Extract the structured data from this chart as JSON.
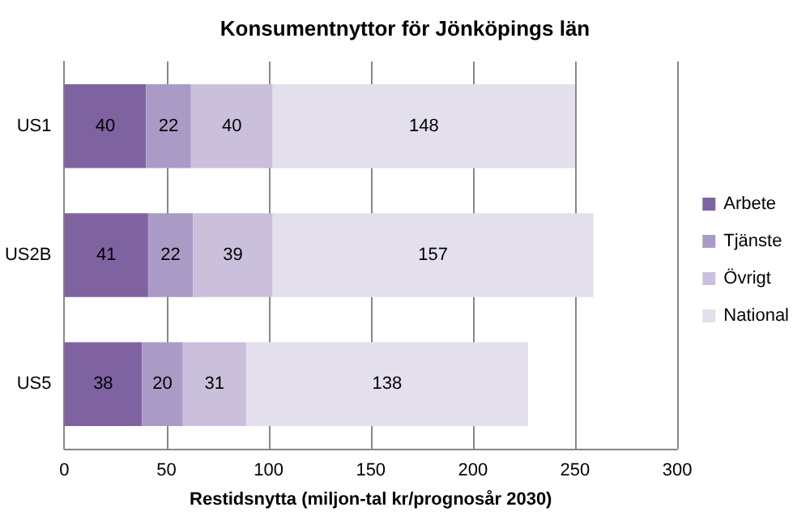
{
  "chart_data": {
    "type": "bar",
    "title": "Konsumentnyttor för Jönköpings län",
    "xlabel": "Restidsnytta (miljon-tal kr/prognosår 2030)",
    "orientation": "horizontal",
    "stacked": true,
    "categories": [
      "US1",
      "US2B",
      "US5"
    ],
    "series": [
      {
        "name": "Arbete",
        "color": "#7f63a1",
        "values": [
          40,
          41,
          38
        ]
      },
      {
        "name": "Tjänste",
        "color": "#a99bc6",
        "values": [
          22,
          22,
          20
        ]
      },
      {
        "name": "Övrigt",
        "color": "#cac0dc",
        "values": [
          40,
          39,
          31
        ]
      },
      {
        "name": "National",
        "color": "#e4dfec",
        "values": [
          148,
          157,
          138
        ]
      }
    ],
    "xlim": [
      0,
      300
    ],
    "xticks": [
      0,
      50,
      100,
      150,
      200,
      250,
      300
    ],
    "grid": "x",
    "legend": "right",
    "data_labels": true
  }
}
